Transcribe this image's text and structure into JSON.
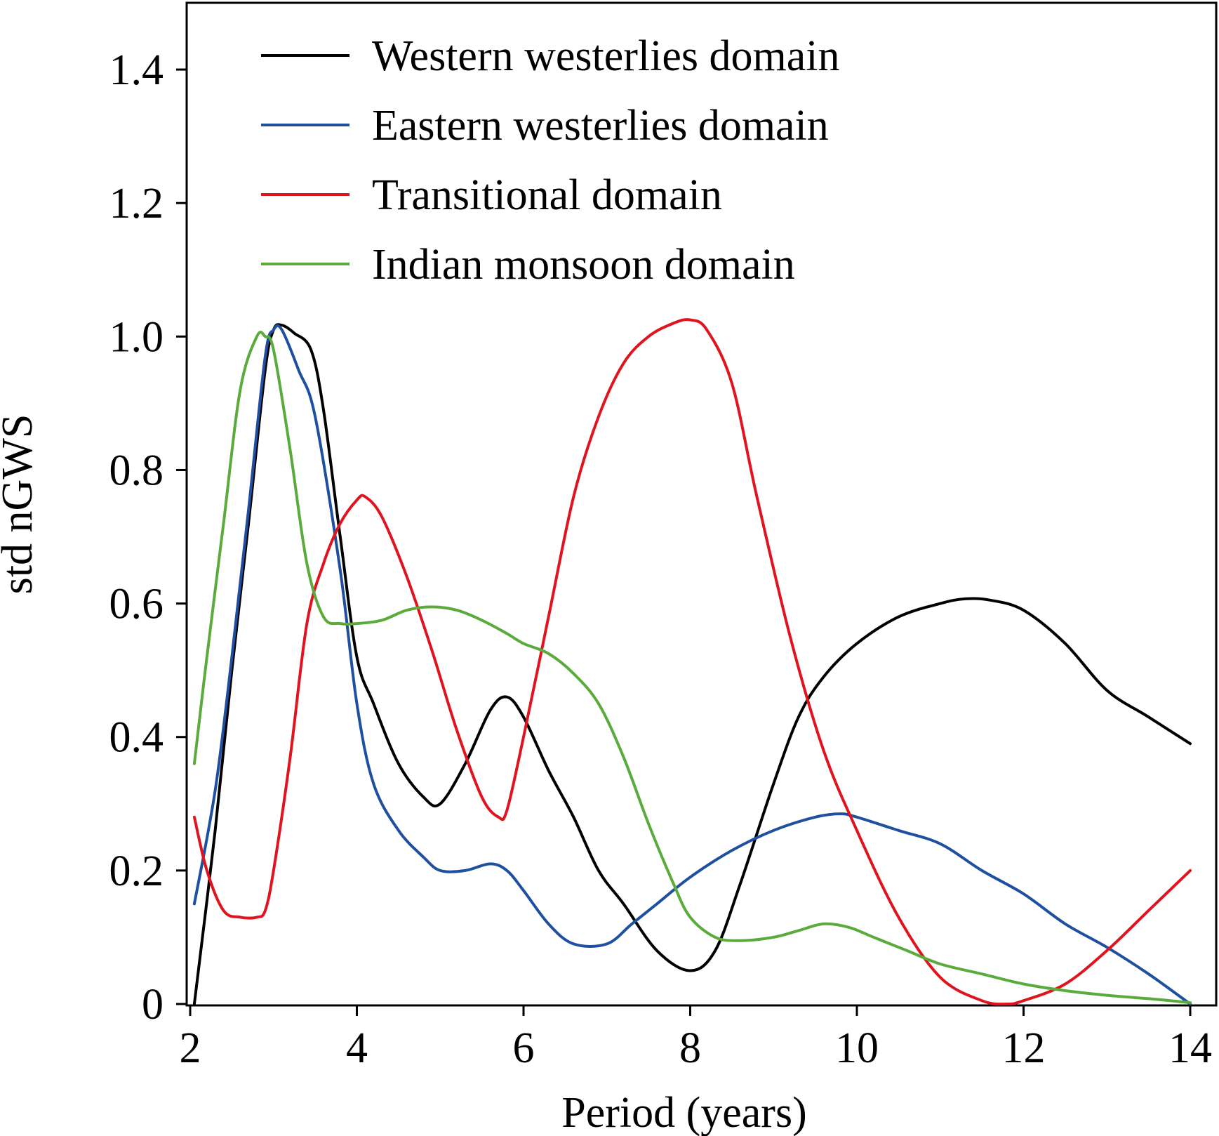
{
  "chart_data": {
    "type": "line",
    "title": "",
    "xlabel": "Period (years)",
    "ylabel": "std nGWS",
    "xlim": [
      2,
      14
    ],
    "ylim": [
      0,
      1.5
    ],
    "x_ticks": [
      2,
      4,
      6,
      8,
      10,
      12,
      14
    ],
    "x_tick_labels": [
      "2",
      "4",
      "6",
      "8",
      "10",
      "12",
      "14"
    ],
    "y_ticks": [
      0,
      0.2,
      0.4,
      0.6,
      0.8,
      1.0,
      1.2,
      1.4
    ],
    "y_tick_labels": [
      "0",
      "0.2",
      "0.4",
      "0.6",
      "0.8",
      "1.0",
      "1.2",
      "1.4"
    ],
    "grid": false,
    "legend_position": "top-left",
    "series": [
      {
        "name": "Western westerlies domain",
        "color": "#000000",
        "x": [
          2.05,
          2.3,
          2.5,
          2.7,
          2.9,
          3.0,
          3.1,
          3.25,
          3.45,
          3.6,
          3.8,
          4.0,
          4.2,
          4.5,
          4.8,
          5.0,
          5.3,
          5.6,
          5.8,
          6.0,
          6.3,
          6.6,
          6.9,
          7.2,
          7.6,
          8.0,
          8.3,
          8.6,
          9.0,
          9.3,
          9.6,
          10.0,
          10.5,
          11.0,
          11.3,
          11.6,
          12.0,
          12.5,
          13.0,
          13.5,
          14.0
        ],
        "y": [
          0.0,
          0.26,
          0.5,
          0.72,
          0.95,
          1.01,
          1.017,
          1.005,
          0.98,
          0.89,
          0.7,
          0.52,
          0.45,
          0.36,
          0.31,
          0.3,
          0.36,
          0.44,
          0.46,
          0.43,
          0.35,
          0.28,
          0.2,
          0.15,
          0.08,
          0.05,
          0.08,
          0.18,
          0.33,
          0.43,
          0.49,
          0.54,
          0.58,
          0.6,
          0.607,
          0.605,
          0.59,
          0.54,
          0.47,
          0.43,
          0.39
        ]
      },
      {
        "name": "Eastern westerlies domain",
        "color": "#1f4fa0",
        "x": [
          2.05,
          2.3,
          2.5,
          2.7,
          2.9,
          3.0,
          3.1,
          3.3,
          3.5,
          3.8,
          4.0,
          4.2,
          4.5,
          4.8,
          5.0,
          5.3,
          5.6,
          5.8,
          6.0,
          6.3,
          6.6,
          7.0,
          7.3,
          7.6,
          8.0,
          8.5,
          9.0,
          9.5,
          9.8,
          10.0,
          10.5,
          11.0,
          11.5,
          12.0,
          12.5,
          13.0,
          13.5,
          14.0
        ],
        "y": [
          0.15,
          0.32,
          0.52,
          0.74,
          0.97,
          1.01,
          1.01,
          0.95,
          0.88,
          0.65,
          0.45,
          0.33,
          0.26,
          0.22,
          0.2,
          0.2,
          0.21,
          0.2,
          0.17,
          0.12,
          0.09,
          0.09,
          0.12,
          0.15,
          0.19,
          0.23,
          0.26,
          0.28,
          0.285,
          0.28,
          0.26,
          0.24,
          0.2,
          0.165,
          0.12,
          0.085,
          0.045,
          0.0
        ]
      },
      {
        "name": "Transitional domain",
        "color": "#e0141e",
        "x": [
          2.05,
          2.2,
          2.4,
          2.6,
          2.8,
          2.9,
          3.0,
          3.2,
          3.4,
          3.6,
          3.8,
          4.0,
          4.1,
          4.3,
          4.6,
          4.9,
          5.2,
          5.5,
          5.7,
          5.8,
          6.0,
          6.3,
          6.6,
          6.9,
          7.2,
          7.5,
          7.8,
          8.0,
          8.2,
          8.5,
          8.8,
          9.2,
          9.6,
          10.0,
          10.5,
          11.0,
          11.5,
          11.8,
          12.0,
          12.5,
          13.0,
          13.5,
          14.0
        ],
        "y": [
          0.28,
          0.2,
          0.14,
          0.13,
          0.13,
          0.14,
          0.2,
          0.37,
          0.57,
          0.66,
          0.72,
          0.755,
          0.76,
          0.73,
          0.64,
          0.53,
          0.41,
          0.31,
          0.28,
          0.29,
          0.4,
          0.58,
          0.76,
          0.88,
          0.96,
          1.0,
          1.02,
          1.025,
          1.01,
          0.93,
          0.76,
          0.55,
          0.38,
          0.26,
          0.13,
          0.04,
          0.005,
          0.0,
          0.005,
          0.03,
          0.08,
          0.14,
          0.2
        ]
      },
      {
        "name": "Indian monsoon domain",
        "color": "#5aab3c",
        "x": [
          2.05,
          2.2,
          2.4,
          2.6,
          2.8,
          2.9,
          3.0,
          3.2,
          3.4,
          3.6,
          3.8,
          4.0,
          4.3,
          4.6,
          4.9,
          5.2,
          5.5,
          5.8,
          6.0,
          6.3,
          6.6,
          6.9,
          7.2,
          7.5,
          7.8,
          8.0,
          8.3,
          8.6,
          9.0,
          9.3,
          9.6,
          9.9,
          10.2,
          10.6,
          11.0,
          11.5,
          12.0,
          12.5,
          13.0,
          13.5,
          14.0
        ],
        "y": [
          0.36,
          0.52,
          0.72,
          0.92,
          1.0,
          1.0,
          0.98,
          0.83,
          0.66,
          0.58,
          0.57,
          0.57,
          0.575,
          0.59,
          0.595,
          0.59,
          0.575,
          0.555,
          0.54,
          0.525,
          0.495,
          0.45,
          0.37,
          0.27,
          0.18,
          0.13,
          0.1,
          0.095,
          0.1,
          0.11,
          0.12,
          0.115,
          0.1,
          0.08,
          0.06,
          0.045,
          0.03,
          0.02,
          0.013,
          0.008,
          0.002
        ]
      }
    ]
  }
}
